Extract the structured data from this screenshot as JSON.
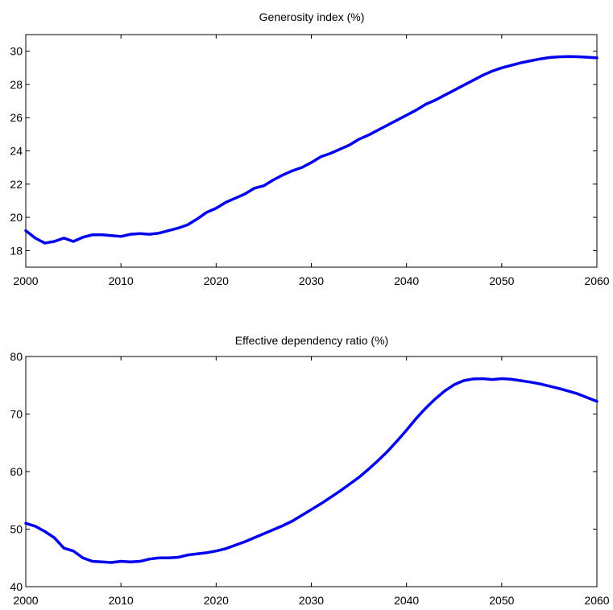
{
  "colors": {
    "line": "#0000ee",
    "axes": "#000000",
    "background": "#ffffff"
  },
  "chart_data": [
    {
      "type": "line",
      "title": "Generosity index (%)",
      "xlabel": "",
      "ylabel": "",
      "xlim": [
        2000,
        2060
      ],
      "ylim": [
        17,
        31
      ],
      "grid": false,
      "xticks": [
        2000,
        2010,
        2020,
        2030,
        2040,
        2050,
        2060
      ],
      "yticks": [
        18,
        20,
        22,
        24,
        26,
        28,
        30
      ],
      "series": [
        {
          "x": [
            2000,
            2001,
            2002,
            2003,
            2004,
            2005,
            2006,
            2007,
            2008,
            2009,
            2010,
            2011,
            2012,
            2013,
            2014,
            2015,
            2016,
            2017,
            2018,
            2019,
            2020,
            2021,
            2022,
            2023,
            2024,
            2025,
            2026,
            2027,
            2028,
            2029,
            2030,
            2031,
            2032,
            2033,
            2034,
            2035,
            2036,
            2037,
            2038,
            2039,
            2040,
            2041,
            2042,
            2043,
            2044,
            2045,
            2046,
            2047,
            2048,
            2049,
            2050,
            2051,
            2052,
            2053,
            2054,
            2055,
            2056,
            2057,
            2058,
            2059,
            2060
          ],
          "y": [
            19.2,
            18.75,
            18.45,
            18.55,
            18.75,
            18.55,
            18.8,
            18.95,
            18.95,
            18.9,
            18.85,
            18.98,
            19.02,
            18.98,
            19.05,
            19.2,
            19.35,
            19.55,
            19.9,
            20.3,
            20.55,
            20.9,
            21.15,
            21.4,
            21.75,
            21.9,
            22.25,
            22.55,
            22.8,
            23.0,
            23.3,
            23.65,
            23.85,
            24.1,
            24.35,
            24.7,
            24.95,
            25.25,
            25.55,
            25.85,
            26.15,
            26.45,
            26.8,
            27.05,
            27.35,
            27.65,
            27.95,
            28.25,
            28.55,
            28.8,
            29.0,
            29.15,
            29.3,
            29.42,
            29.53,
            29.62,
            29.66,
            29.68,
            29.67,
            29.64,
            29.6
          ]
        }
      ]
    },
    {
      "type": "line",
      "title": "Effective dependency ratio (%)",
      "xlabel": "",
      "ylabel": "",
      "xlim": [
        2000,
        2060
      ],
      "ylim": [
        40,
        80
      ],
      "grid": false,
      "xticks": [
        2000,
        2010,
        2020,
        2030,
        2040,
        2050,
        2060
      ],
      "yticks": [
        40,
        50,
        60,
        70,
        80
      ],
      "series": [
        {
          "x": [
            2000,
            2001,
            2002,
            2003,
            2004,
            2005,
            2006,
            2007,
            2008,
            2009,
            2010,
            2011,
            2012,
            2013,
            2014,
            2015,
            2016,
            2017,
            2018,
            2019,
            2020,
            2021,
            2022,
            2023,
            2024,
            2025,
            2026,
            2027,
            2028,
            2029,
            2030,
            2031,
            2032,
            2033,
            2034,
            2035,
            2036,
            2037,
            2038,
            2039,
            2040,
            2041,
            2042,
            2043,
            2044,
            2045,
            2046,
            2047,
            2048,
            2049,
            2050,
            2051,
            2052,
            2053,
            2054,
            2055,
            2056,
            2057,
            2058,
            2059,
            2060
          ],
          "y": [
            51.0,
            50.5,
            49.6,
            48.5,
            46.7,
            46.2,
            45.0,
            44.4,
            44.3,
            44.2,
            44.4,
            44.3,
            44.4,
            44.8,
            45.0,
            45.0,
            45.1,
            45.5,
            45.7,
            45.9,
            46.2,
            46.6,
            47.2,
            47.8,
            48.5,
            49.2,
            49.9,
            50.6,
            51.4,
            52.4,
            53.4,
            54.4,
            55.5,
            56.6,
            57.8,
            59.0,
            60.4,
            61.9,
            63.5,
            65.3,
            67.2,
            69.2,
            71.0,
            72.6,
            74.0,
            75.1,
            75.8,
            76.1,
            76.15,
            76.0,
            76.15,
            76.05,
            75.8,
            75.55,
            75.25,
            74.85,
            74.45,
            74.0,
            73.5,
            72.85,
            72.2
          ]
        }
      ]
    }
  ]
}
